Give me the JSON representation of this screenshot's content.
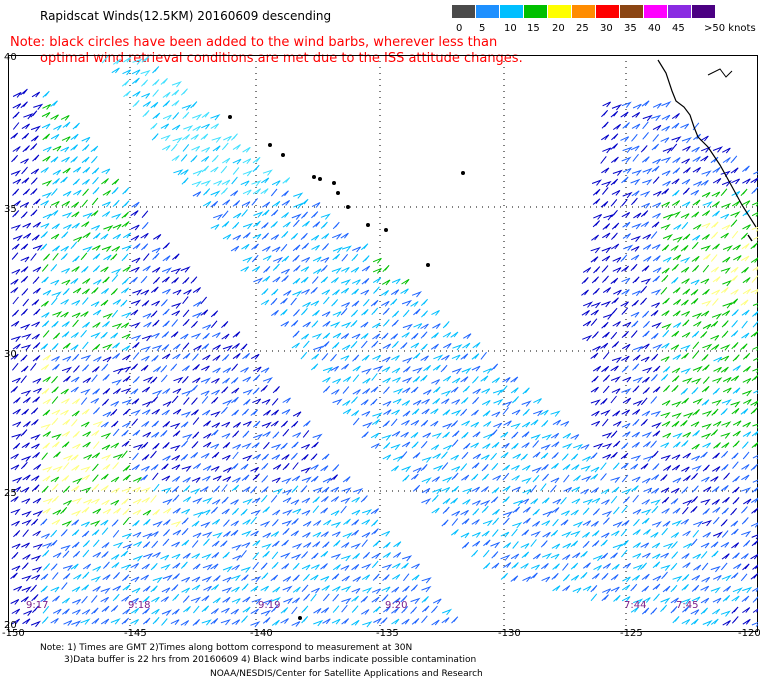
{
  "header": {
    "title": "Rapidscat Winds(12.5KM) 20160609 descending",
    "note_line1": "Note: black circles have been added to the wind barbs, wherever less than",
    "note_line2": "optimal wind retrieval conditions are met due to the ISS attitude changes."
  },
  "scale": {
    "boxes": [
      {
        "color": "#4a4a4a"
      },
      {
        "color": "#1e90ff"
      },
      {
        "color": "#00bfff"
      },
      {
        "color": "#00c000"
      },
      {
        "color": "#ffff00"
      },
      {
        "color": "#ff8c00"
      },
      {
        "color": "#ff0000"
      },
      {
        "color": "#8b4513"
      },
      {
        "color": "#ff00ff"
      },
      {
        "color": "#8a2be2"
      },
      {
        "color": "#4b0082"
      }
    ],
    "labels": [
      "0",
      "5",
      "10",
      "15",
      "20",
      "25",
      "30",
      "35",
      "40",
      "45",
      ">50 knots"
    ]
  },
  "axes": {
    "lat_labels": [
      "40",
      "35",
      "30",
      "25",
      "20"
    ],
    "lon_labels": [
      "-150",
      "-145",
      "-140",
      "-135",
      "-130",
      "-125",
      "-120"
    ]
  },
  "pass_times": [
    "9:17",
    "9:18",
    "9:19",
    "9:20",
    "7:44",
    "7:45"
  ],
  "footer": {
    "line1": "Note: 1) Times are GMT 2)Times along bottom correspond to measurement at 30N",
    "line2": "3)Data buffer is 22 hrs from 20160609 4) Black wind barbs indicate possible contamination",
    "line3": "NOAA/NESDIS/Center for Satellite Applications and Research"
  }
}
